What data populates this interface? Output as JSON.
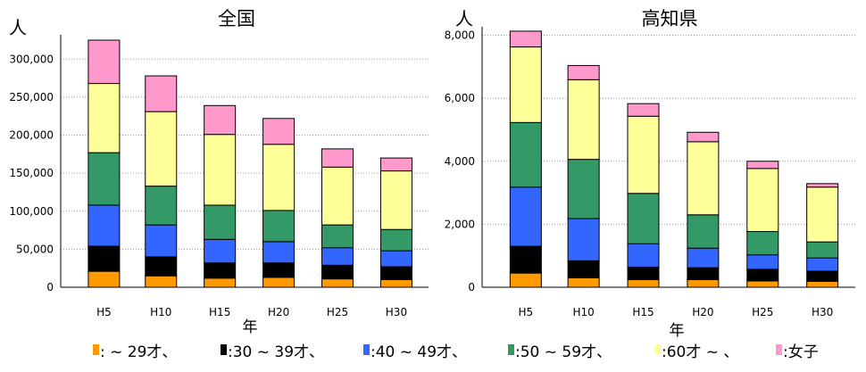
{
  "legend": {
    "items": [
      {
        "label": ": ~ 29才、",
        "color": "#ff9900"
      },
      {
        "label": ":30 ~ 39才、",
        "color": "#000000"
      },
      {
        "label": ":40 ~ 49才、",
        "color": "#3366ff"
      },
      {
        "label": ":50 ~ 59才、",
        "color": "#339966"
      },
      {
        "label": ":60才 ~ 、",
        "color": "#ffff99"
      },
      {
        "label": ":女子",
        "color": "#ff99cc"
      }
    ]
  },
  "chart_data": [
    {
      "type": "bar",
      "stacked": true,
      "title": "全国",
      "ylabel": "人",
      "xlabel": "年",
      "categories": [
        "H5",
        "H10",
        "H15",
        "H20",
        "H25",
        "H30"
      ],
      "ylim": [
        0,
        325000
      ],
      "yticks": [
        0,
        50000,
        100000,
        150000,
        200000,
        250000,
        300000
      ],
      "ytick_labels": [
        "0",
        "50,000",
        "100,000",
        "150,000",
        "200,000",
        "250,000",
        "300,000"
      ],
      "grid": "horizontal dotted",
      "series": [
        {
          "name": "~ 29才",
          "color": "#ff9900",
          "values": [
            21000,
            15000,
            12000,
            13000,
            11000,
            10000
          ]
        },
        {
          "name": "30 ~ 39才",
          "color": "#000000",
          "values": [
            33000,
            25000,
            20000,
            19000,
            18000,
            17000
          ]
        },
        {
          "name": "40 ~ 49才",
          "color": "#3366ff",
          "values": [
            54000,
            42000,
            31000,
            28000,
            23000,
            21000
          ]
        },
        {
          "name": "50 ~ 59才",
          "color": "#339966",
          "values": [
            69000,
            51000,
            45000,
            41000,
            30000,
            28000
          ]
        },
        {
          "name": "60才 ~",
          "color": "#ffff99",
          "values": [
            91000,
            98000,
            93000,
            87000,
            76000,
            77000
          ]
        },
        {
          "name": "女子",
          "color": "#ff99cc",
          "values": [
            57000,
            47000,
            38000,
            34000,
            24000,
            17000
          ]
        }
      ]
    },
    {
      "type": "bar",
      "stacked": true,
      "title": "高知県",
      "ylabel": "人",
      "xlabel": "年",
      "categories": [
        "H5",
        "H10",
        "H15",
        "H20",
        "H25",
        "H30"
      ],
      "ylim": [
        0,
        8100
      ],
      "yticks": [
        0,
        2000,
        4000,
        6000,
        8000
      ],
      "ytick_labels": [
        "0",
        "2,000",
        "4,000",
        "6,000",
        "8,000"
      ],
      "grid": "horizontal dotted",
      "series": [
        {
          "name": "~ 29才",
          "color": "#ff9900",
          "values": [
            450,
            300,
            240,
            240,
            200,
            190
          ]
        },
        {
          "name": "30 ~ 39才",
          "color": "#000000",
          "values": [
            850,
            540,
            400,
            380,
            370,
            320
          ]
        },
        {
          "name": "40 ~ 49才",
          "color": "#3366ff",
          "values": [
            1880,
            1340,
            740,
            620,
            460,
            420
          ]
        },
        {
          "name": "50 ~ 59才",
          "color": "#339966",
          "values": [
            2050,
            1880,
            1600,
            1060,
            740,
            510
          ]
        },
        {
          "name": "60才 ~",
          "color": "#ffff99",
          "values": [
            2400,
            2530,
            2450,
            2320,
            2000,
            1740
          ]
        },
        {
          "name": "女子",
          "color": "#ff99cc",
          "values": [
            500,
            450,
            400,
            300,
            230,
            110
          ]
        }
      ]
    }
  ]
}
